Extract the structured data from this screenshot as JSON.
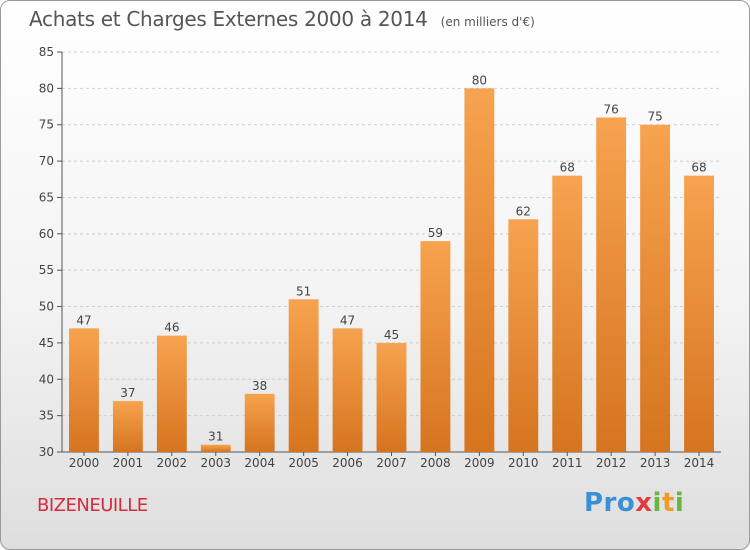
{
  "header": {
    "title": "Achats et Charges Externes 2000 à 2014",
    "unit": "(en milliers d'€)"
  },
  "footer": {
    "commune": "BIZENEUILLE",
    "brand": "Proxiti"
  },
  "colors": {
    "bar_light": "#f7a34f",
    "bar_dark": "#d6741f",
    "commune_text": "#d62a3d"
  },
  "chart_data": {
    "type": "bar",
    "title": "Achats et Charges Externes 2000 à 2014",
    "subtitle": "(en milliers d'€)",
    "xlabel": "",
    "ylabel": "",
    "categories": [
      "2000",
      "2001",
      "2002",
      "2003",
      "2004",
      "2005",
      "2006",
      "2007",
      "2008",
      "2009",
      "2010",
      "2011",
      "2012",
      "2013",
      "2014"
    ],
    "values": [
      47,
      37,
      46,
      31,
      38,
      51,
      47,
      45,
      59,
      80,
      62,
      68,
      76,
      75,
      68
    ],
    "ylim": [
      30,
      85
    ],
    "yticks": [
      30,
      35,
      40,
      45,
      50,
      55,
      60,
      65,
      70,
      75,
      80,
      85
    ],
    "grid": true,
    "data_labels": true
  }
}
